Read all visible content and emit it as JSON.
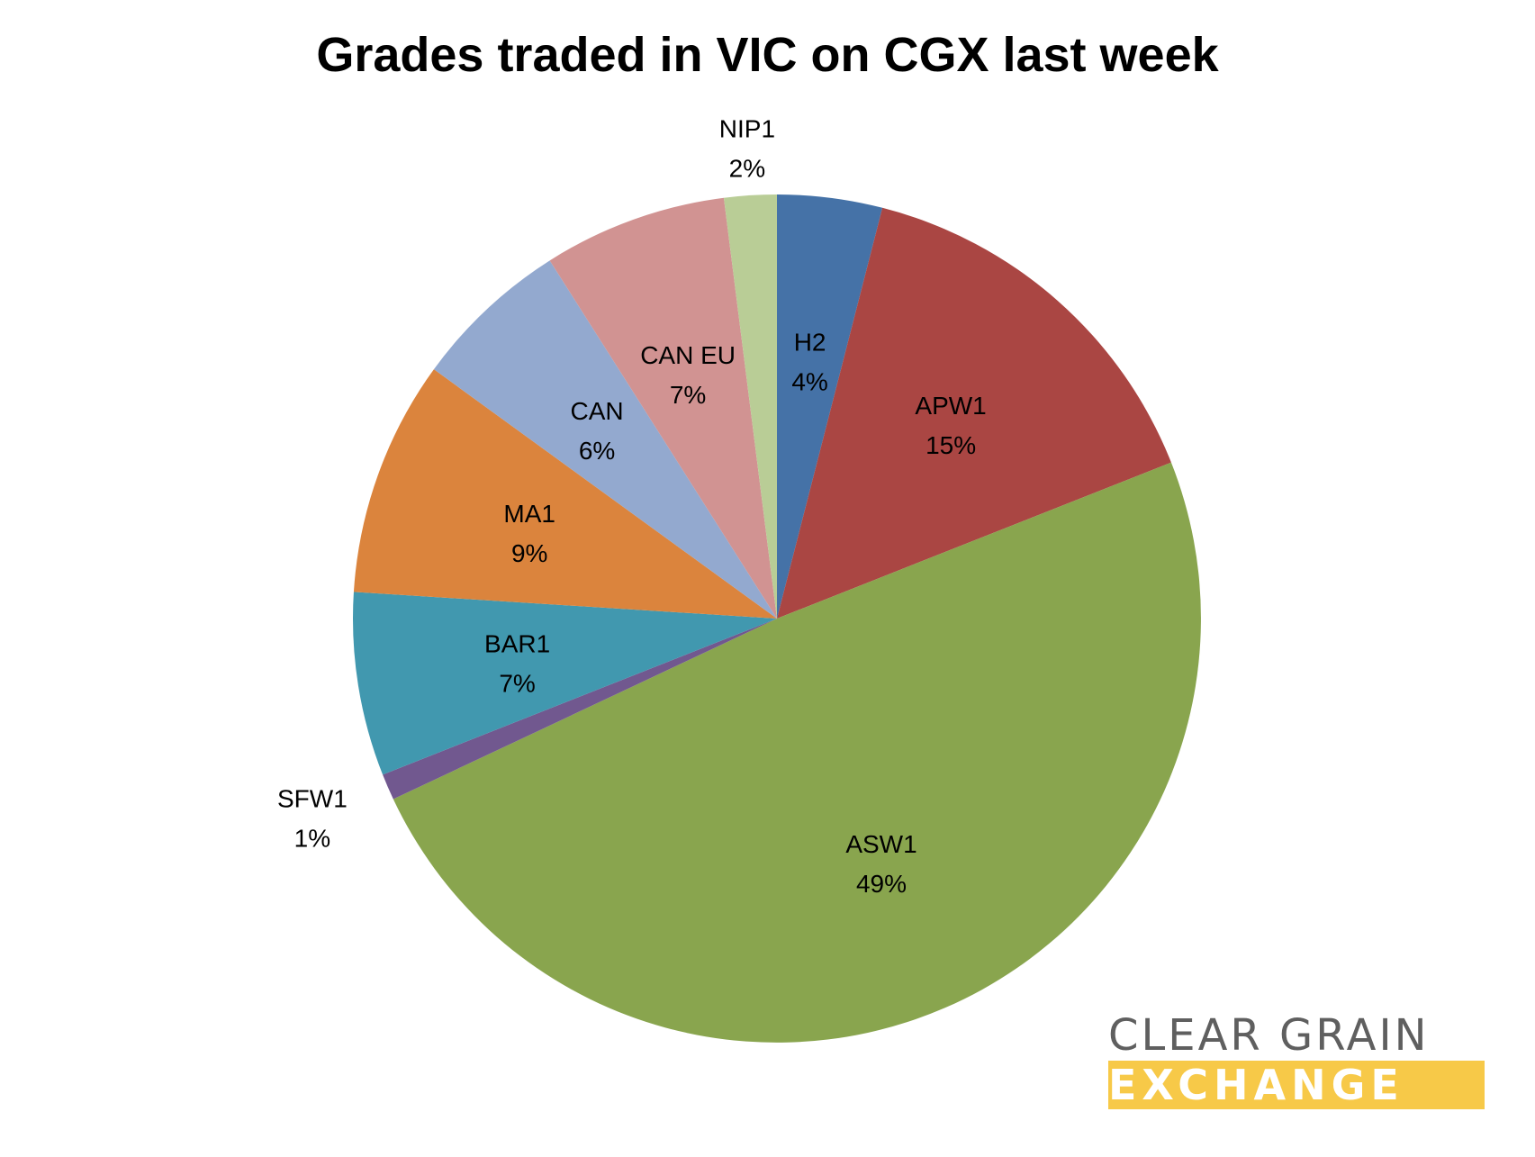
{
  "chart_data": {
    "type": "pie",
    "title": "Grades traded in VIC on CGX last week",
    "start_angle_deg": 0,
    "direction": "clockwise",
    "slices": [
      {
        "label": "H2",
        "value": 4,
        "display": "4%",
        "color": "#4572a7"
      },
      {
        "label": "APW1",
        "value": 15,
        "display": "15%",
        "color": "#aa4643"
      },
      {
        "label": "ASW1",
        "value": 49,
        "display": "49%",
        "color": "#89a54e"
      },
      {
        "label": "SFW1",
        "value": 1,
        "display": "1%",
        "color": "#71588f"
      },
      {
        "label": "BAR1",
        "value": 7,
        "display": "7%",
        "color": "#4198af"
      },
      {
        "label": "MA1",
        "value": 9,
        "display": "9%",
        "color": "#db843d"
      },
      {
        "label": "CAN",
        "value": 6,
        "display": "6%",
        "color": "#93a9cf"
      },
      {
        "label": "CAN EU",
        "value": 7,
        "display": "7%",
        "color": "#d19392"
      },
      {
        "label": "NIP1",
        "value": 2,
        "display": "2%",
        "color": "#b9cd96"
      }
    ]
  },
  "logo": {
    "line1": "CLEAR GRAIN",
    "line2": "EXCHANGE",
    "colors": {
      "text": "#5f5f5f",
      "band": "#f7c948"
    }
  }
}
